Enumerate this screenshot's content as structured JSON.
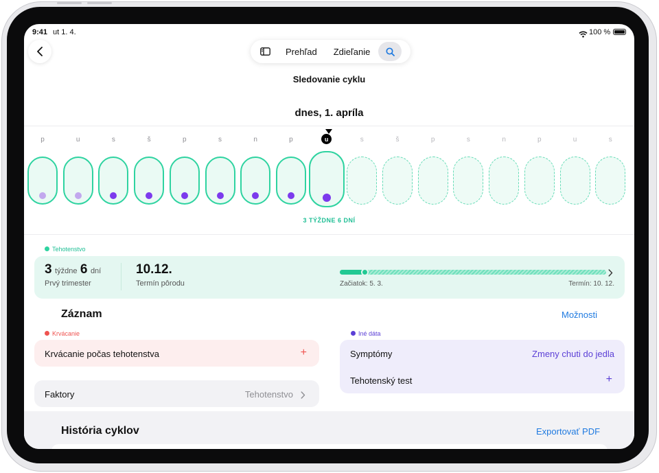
{
  "status": {
    "time": "9:41",
    "date": "ut 1. 4.",
    "battery": "100 %"
  },
  "nav": {
    "overview": "Prehľad",
    "sharing": "Zdieľanie"
  },
  "page_title": "Sledovanie cyklu",
  "calendar": {
    "heading": "dnes, 1. apríla",
    "days": [
      "p",
      "u",
      "s",
      "š",
      "p",
      "s",
      "n",
      "p",
      "u",
      "s",
      "š",
      "p",
      "s",
      "n",
      "p",
      "u",
      "s"
    ],
    "today_index": 8,
    "dot_colors": [
      "#c2a8ee",
      "#c2a8ee",
      "#7c3aed",
      "#7c3aed",
      "#7c3aed",
      "#7c3aed",
      "#7c3aed",
      "#7c3aed",
      "#7c3aed"
    ],
    "gestation_label": "3 TÝŽDNE 6 DNÍ"
  },
  "pregnancy": {
    "section_label": "Tehotenstvo",
    "weeks_num": "3",
    "weeks_word": "týždne",
    "days_num": "6",
    "days_word": "dní",
    "trimester": "Prvý trimester",
    "due_date": "10.12.",
    "due_label": "Termín pôrodu",
    "start_label": "Začiatok: 5. 3.",
    "end_label": "Termín: 10. 12.",
    "progress": 0.06
  },
  "log": {
    "title": "Záznam",
    "options": "Možnosti",
    "bleeding_label": "Krvácanie",
    "bleeding_item": "Krvácanie počas tehotenstva",
    "factors_label": "Faktory",
    "factors_value": "Tehotenstvo",
    "other_label": "Iné dáta",
    "symptoms_label": "Symptómy",
    "symptoms_value": "Zmeny chuti do jedla",
    "test_label": "Tehotenský test"
  },
  "history": {
    "title": "História cyklov",
    "export": "Exportovať PDF"
  },
  "colors": {
    "accent": "#2ed3a0",
    "teal_text": "#1fbf95",
    "purple": "#5b3fd6",
    "blue": "#1f7ae0",
    "red": "#ef5350"
  }
}
